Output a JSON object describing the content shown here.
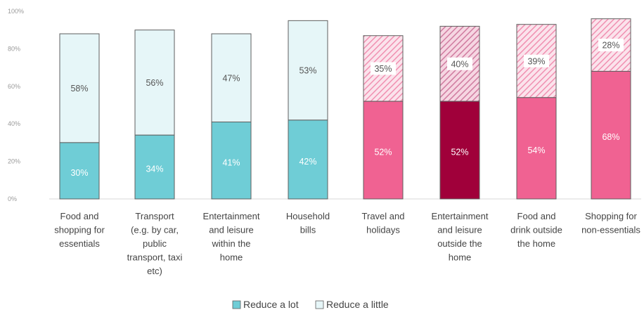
{
  "header_fragment": {
    "left_text": "...",
    "right_text": "..."
  },
  "chart_data": {
    "type": "bar",
    "stacked": true,
    "categories": [
      [
        "Food and",
        "shopping for",
        "essentials"
      ],
      [
        "Transport",
        "(e.g. by car,",
        "public",
        "transport, taxi",
        "etc)"
      ],
      [
        "Entertainment",
        "and leisure",
        "within the",
        "home"
      ],
      [
        "Household",
        "bills"
      ],
      [
        "Travel and",
        "holidays"
      ],
      [
        "Entertainment",
        "and leisure",
        "outside the",
        "home"
      ],
      [
        "Food and",
        "drink outside",
        "the home"
      ],
      [
        "Shopping for",
        "non-essentials"
      ]
    ],
    "series": [
      {
        "name": "Reduce a lot",
        "values": [
          30,
          34,
          41,
          42,
          52,
          52,
          54,
          68
        ]
      },
      {
        "name": "Reduce a little",
        "values": [
          58,
          56,
          47,
          53,
          35,
          40,
          39,
          28
        ]
      }
    ],
    "data_labels": [
      [
        "30%",
        "34%",
        "41%",
        "42%",
        "52%",
        "52%",
        "54%",
        "68%"
      ],
      [
        "58%",
        "56%",
        "47%",
        "53%",
        "35%",
        "40%",
        "39%",
        "28%"
      ]
    ],
    "bar_colors": {
      "teal": "#6fcdd6",
      "teal_light": "#e6f6f8",
      "pink": "#f06292",
      "pink_light": "#f7c3d6",
      "maroon": "#a0003a",
      "maroon_light": "#e7a2bd",
      "outline": "#5f5f5f",
      "header_fragment": "#e53935"
    },
    "bar_palette": [
      "teal",
      "teal",
      "teal",
      "teal",
      "pink",
      "maroon",
      "pink",
      "pink"
    ],
    "y_ticks": [
      "0%",
      "20%",
      "40%",
      "60%",
      "80%",
      "100%"
    ],
    "ylim": [
      0,
      100
    ],
    "grid": false,
    "legend_position": "bottom-center",
    "legend": [
      {
        "label": "Reduce a lot",
        "color": "#6fcdd6"
      },
      {
        "label": "Reduce a little",
        "color": "#e6f6f8"
      }
    ]
  }
}
